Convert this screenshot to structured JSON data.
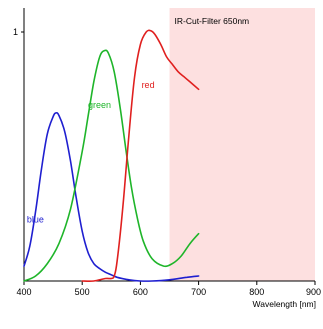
{
  "chart_data": {
    "type": "line",
    "title": "",
    "xlabel": "Wavelength [nm]",
    "ylabel": "",
    "xlim": [
      400,
      900
    ],
    "ylim": [
      0,
      1
    ],
    "x_ticks": [
      400,
      500,
      600,
      700,
      800,
      900
    ],
    "x_tick_labels": [
      "400",
      "500",
      "600",
      "700",
      "800",
      "900"
    ],
    "y_ticks": [
      1
    ],
    "y_tick_labels": [
      "1"
    ],
    "grid": false,
    "annotations": [
      {
        "text": "IR-Cut-Filter 650nm",
        "shaded_range": [
          650,
          900
        ],
        "color": "#fde0e0"
      }
    ],
    "series": [
      {
        "name": "blue",
        "color": "#1f1fd0",
        "x": [
          400,
          410,
          420,
          430,
          440,
          450,
          455,
          460,
          470,
          480,
          490,
          500,
          510,
          520,
          530,
          540,
          550,
          560,
          580,
          600,
          620,
          650,
          680,
          700
        ],
        "y": [
          0.06,
          0.14,
          0.28,
          0.45,
          0.59,
          0.66,
          0.675,
          0.665,
          0.6,
          0.48,
          0.33,
          0.2,
          0.115,
          0.07,
          0.05,
          0.035,
          0.025,
          0.015,
          0.005,
          0.0,
          0.0,
          0.005,
          0.015,
          0.02
        ]
      },
      {
        "name": "green",
        "color": "#1fb52a",
        "x": [
          400,
          420,
          440,
          460,
          480,
          500,
          510,
          520,
          530,
          538,
          545,
          555,
          565,
          575,
          585,
          595,
          605,
          620,
          640,
          655,
          670,
          685,
          700
        ],
        "y": [
          0.0,
          0.02,
          0.07,
          0.15,
          0.29,
          0.52,
          0.66,
          0.8,
          0.9,
          0.925,
          0.915,
          0.84,
          0.7,
          0.53,
          0.37,
          0.25,
          0.16,
          0.09,
          0.06,
          0.07,
          0.1,
          0.15,
          0.19
        ]
      },
      {
        "name": "red",
        "color": "#e0201f",
        "x": [
          500,
          520,
          540,
          550,
          555,
          560,
          570,
          580,
          590,
          600,
          610,
          618,
          625,
          635,
          645,
          655,
          665,
          675,
          685,
          700
        ],
        "y": [
          0.0,
          0.0,
          0.01,
          0.01,
          0.02,
          0.08,
          0.3,
          0.58,
          0.82,
          0.95,
          1.0,
          1.005,
          0.99,
          0.95,
          0.9,
          0.87,
          0.84,
          0.82,
          0.8,
          0.77
        ]
      }
    ],
    "series_labels": [
      {
        "name": "blue",
        "at": [
          405,
          0.235
        ]
      },
      {
        "name": "green",
        "at": [
          510,
          0.695
        ]
      },
      {
        "name": "red",
        "at": [
          602,
          0.775
        ]
      }
    ]
  }
}
